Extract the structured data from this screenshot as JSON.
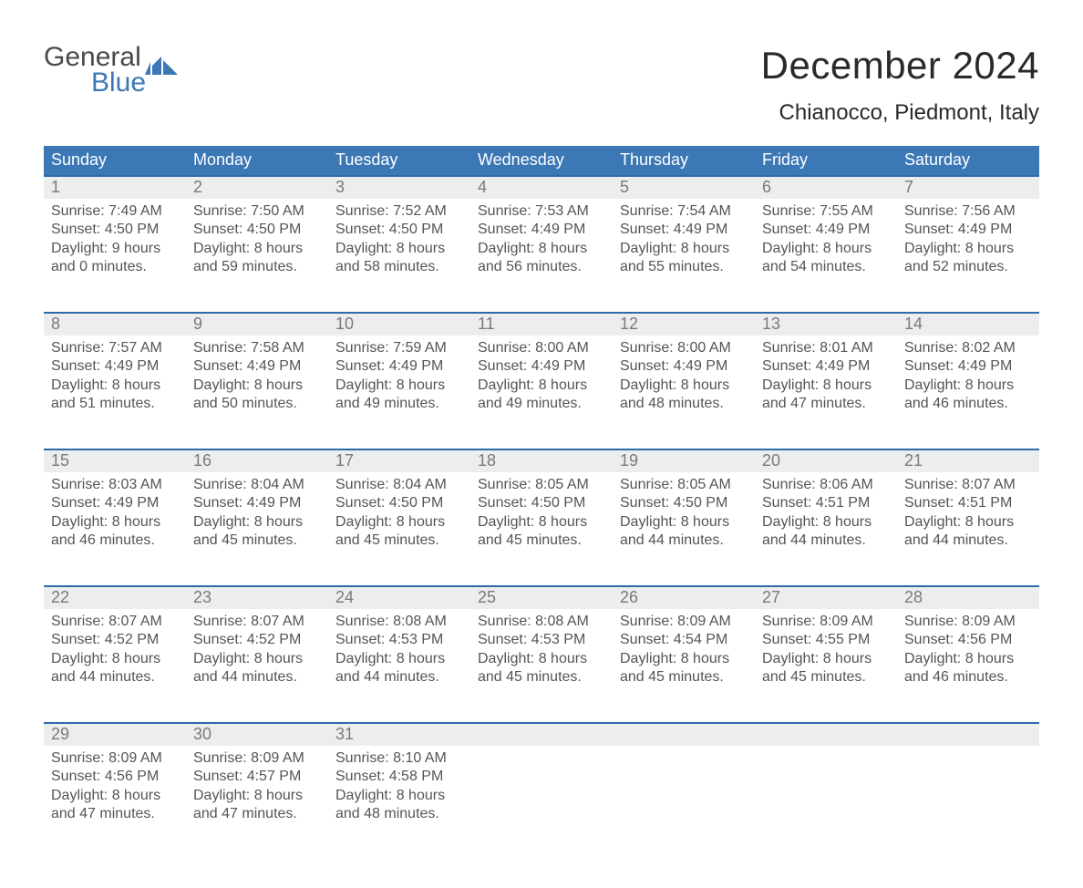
{
  "colors": {
    "accent": "#3b78b5",
    "accent_dark": "#2f6aa8",
    "header_row_bg": "#eceded",
    "page_bg": "#ffffff",
    "text": "#333333",
    "muted": "#555555",
    "day_number": "#7a7a7a",
    "logo_gray": "#4a4a4a"
  },
  "typography": {
    "title_fontsize": 42,
    "subtitle_fontsize": 24,
    "dow_fontsize": 18,
    "daynum_fontsize": 18,
    "body_fontsize": 16,
    "font_family": "Arial"
  },
  "logo": {
    "line1": "General",
    "line2": "Blue"
  },
  "header": {
    "title": "December 2024",
    "subtitle": "Chianocco, Piedmont, Italy"
  },
  "calendar": {
    "type": "table",
    "columns": [
      "Sunday",
      "Monday",
      "Tuesday",
      "Wednesday",
      "Thursday",
      "Friday",
      "Saturday"
    ],
    "weeks": [
      [
        {
          "n": "1",
          "sunrise": "Sunrise: 7:49 AM",
          "sunset": "Sunset: 4:50 PM",
          "d1": "Daylight: 9 hours",
          "d2": "and 0 minutes."
        },
        {
          "n": "2",
          "sunrise": "Sunrise: 7:50 AM",
          "sunset": "Sunset: 4:50 PM",
          "d1": "Daylight: 8 hours",
          "d2": "and 59 minutes."
        },
        {
          "n": "3",
          "sunrise": "Sunrise: 7:52 AM",
          "sunset": "Sunset: 4:50 PM",
          "d1": "Daylight: 8 hours",
          "d2": "and 58 minutes."
        },
        {
          "n": "4",
          "sunrise": "Sunrise: 7:53 AM",
          "sunset": "Sunset: 4:49 PM",
          "d1": "Daylight: 8 hours",
          "d2": "and 56 minutes."
        },
        {
          "n": "5",
          "sunrise": "Sunrise: 7:54 AM",
          "sunset": "Sunset: 4:49 PM",
          "d1": "Daylight: 8 hours",
          "d2": "and 55 minutes."
        },
        {
          "n": "6",
          "sunrise": "Sunrise: 7:55 AM",
          "sunset": "Sunset: 4:49 PM",
          "d1": "Daylight: 8 hours",
          "d2": "and 54 minutes."
        },
        {
          "n": "7",
          "sunrise": "Sunrise: 7:56 AM",
          "sunset": "Sunset: 4:49 PM",
          "d1": "Daylight: 8 hours",
          "d2": "and 52 minutes."
        }
      ],
      [
        {
          "n": "8",
          "sunrise": "Sunrise: 7:57 AM",
          "sunset": "Sunset: 4:49 PM",
          "d1": "Daylight: 8 hours",
          "d2": "and 51 minutes."
        },
        {
          "n": "9",
          "sunrise": "Sunrise: 7:58 AM",
          "sunset": "Sunset: 4:49 PM",
          "d1": "Daylight: 8 hours",
          "d2": "and 50 minutes."
        },
        {
          "n": "10",
          "sunrise": "Sunrise: 7:59 AM",
          "sunset": "Sunset: 4:49 PM",
          "d1": "Daylight: 8 hours",
          "d2": "and 49 minutes."
        },
        {
          "n": "11",
          "sunrise": "Sunrise: 8:00 AM",
          "sunset": "Sunset: 4:49 PM",
          "d1": "Daylight: 8 hours",
          "d2": "and 49 minutes."
        },
        {
          "n": "12",
          "sunrise": "Sunrise: 8:00 AM",
          "sunset": "Sunset: 4:49 PM",
          "d1": "Daylight: 8 hours",
          "d2": "and 48 minutes."
        },
        {
          "n": "13",
          "sunrise": "Sunrise: 8:01 AM",
          "sunset": "Sunset: 4:49 PM",
          "d1": "Daylight: 8 hours",
          "d2": "and 47 minutes."
        },
        {
          "n": "14",
          "sunrise": "Sunrise: 8:02 AM",
          "sunset": "Sunset: 4:49 PM",
          "d1": "Daylight: 8 hours",
          "d2": "and 46 minutes."
        }
      ],
      [
        {
          "n": "15",
          "sunrise": "Sunrise: 8:03 AM",
          "sunset": "Sunset: 4:49 PM",
          "d1": "Daylight: 8 hours",
          "d2": "and 46 minutes."
        },
        {
          "n": "16",
          "sunrise": "Sunrise: 8:04 AM",
          "sunset": "Sunset: 4:49 PM",
          "d1": "Daylight: 8 hours",
          "d2": "and 45 minutes."
        },
        {
          "n": "17",
          "sunrise": "Sunrise: 8:04 AM",
          "sunset": "Sunset: 4:50 PM",
          "d1": "Daylight: 8 hours",
          "d2": "and 45 minutes."
        },
        {
          "n": "18",
          "sunrise": "Sunrise: 8:05 AM",
          "sunset": "Sunset: 4:50 PM",
          "d1": "Daylight: 8 hours",
          "d2": "and 45 minutes."
        },
        {
          "n": "19",
          "sunrise": "Sunrise: 8:05 AM",
          "sunset": "Sunset: 4:50 PM",
          "d1": "Daylight: 8 hours",
          "d2": "and 44 minutes."
        },
        {
          "n": "20",
          "sunrise": "Sunrise: 8:06 AM",
          "sunset": "Sunset: 4:51 PM",
          "d1": "Daylight: 8 hours",
          "d2": "and 44 minutes."
        },
        {
          "n": "21",
          "sunrise": "Sunrise: 8:07 AM",
          "sunset": "Sunset: 4:51 PM",
          "d1": "Daylight: 8 hours",
          "d2": "and 44 minutes."
        }
      ],
      [
        {
          "n": "22",
          "sunrise": "Sunrise: 8:07 AM",
          "sunset": "Sunset: 4:52 PM",
          "d1": "Daylight: 8 hours",
          "d2": "and 44 minutes."
        },
        {
          "n": "23",
          "sunrise": "Sunrise: 8:07 AM",
          "sunset": "Sunset: 4:52 PM",
          "d1": "Daylight: 8 hours",
          "d2": "and 44 minutes."
        },
        {
          "n": "24",
          "sunrise": "Sunrise: 8:08 AM",
          "sunset": "Sunset: 4:53 PM",
          "d1": "Daylight: 8 hours",
          "d2": "and 44 minutes."
        },
        {
          "n": "25",
          "sunrise": "Sunrise: 8:08 AM",
          "sunset": "Sunset: 4:53 PM",
          "d1": "Daylight: 8 hours",
          "d2": "and 45 minutes."
        },
        {
          "n": "26",
          "sunrise": "Sunrise: 8:09 AM",
          "sunset": "Sunset: 4:54 PM",
          "d1": "Daylight: 8 hours",
          "d2": "and 45 minutes."
        },
        {
          "n": "27",
          "sunrise": "Sunrise: 8:09 AM",
          "sunset": "Sunset: 4:55 PM",
          "d1": "Daylight: 8 hours",
          "d2": "and 45 minutes."
        },
        {
          "n": "28",
          "sunrise": "Sunrise: 8:09 AM",
          "sunset": "Sunset: 4:56 PM",
          "d1": "Daylight: 8 hours",
          "d2": "and 46 minutes."
        }
      ],
      [
        {
          "n": "29",
          "sunrise": "Sunrise: 8:09 AM",
          "sunset": "Sunset: 4:56 PM",
          "d1": "Daylight: 8 hours",
          "d2": "and 47 minutes."
        },
        {
          "n": "30",
          "sunrise": "Sunrise: 8:09 AM",
          "sunset": "Sunset: 4:57 PM",
          "d1": "Daylight: 8 hours",
          "d2": "and 47 minutes."
        },
        {
          "n": "31",
          "sunrise": "Sunrise: 8:10 AM",
          "sunset": "Sunset: 4:58 PM",
          "d1": "Daylight: 8 hours",
          "d2": "and 48 minutes."
        },
        null,
        null,
        null,
        null
      ]
    ]
  }
}
